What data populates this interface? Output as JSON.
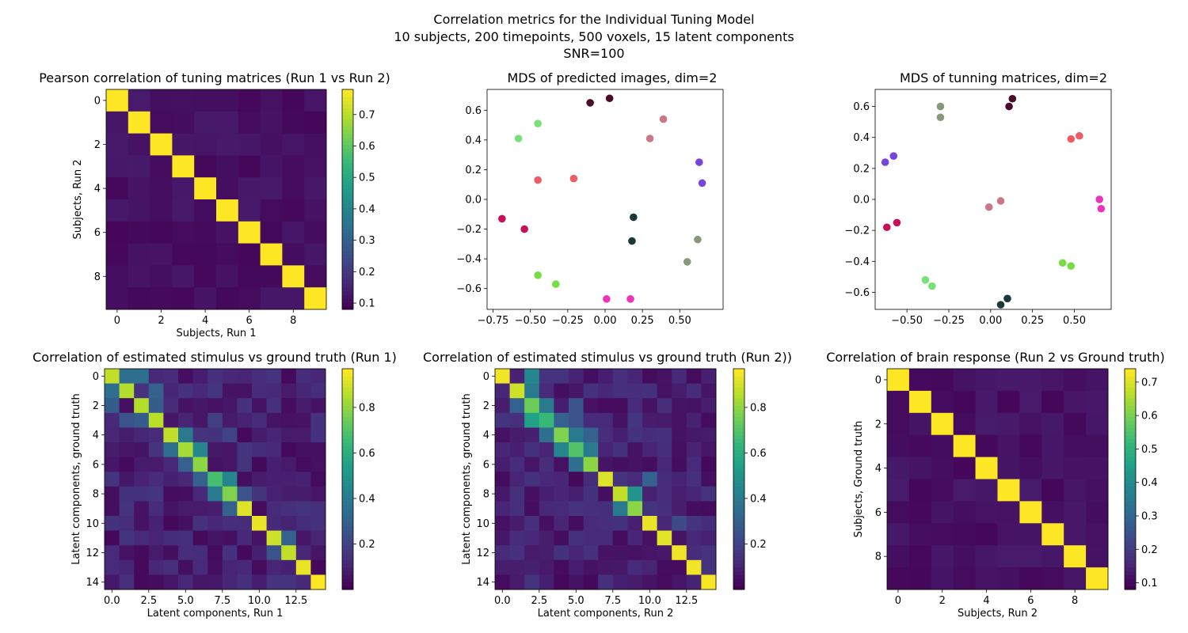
{
  "figure": {
    "suptitle_lines": [
      "Correlation metrics for the Individual Tuning Model",
      "10 subjects, 200 timepoints, 500 voxels, 15 latent components",
      "SNR=100"
    ]
  },
  "chart_data": [
    {
      "id": "tuning",
      "type": "heatmap",
      "title": "Pearson correlation of tuning matrices (Run 1 vs Run 2)",
      "xlabel": "Subjects, Run 1",
      "ylabel": "Subjects, Run 2",
      "n": 10,
      "diag": 0.78,
      "off_range": [
        0.09,
        0.13
      ],
      "vmin": 0.08,
      "vmax": 0.78,
      "xticks": [
        0,
        2,
        4,
        6,
        8
      ],
      "yticks": [
        0,
        2,
        4,
        6,
        8
      ],
      "colorbar_ticks": [
        0.1,
        0.2,
        0.3,
        0.4,
        0.5,
        0.6,
        0.7
      ],
      "colormap": "viridis"
    },
    {
      "id": "mds_pred",
      "type": "scatter",
      "title": "MDS of predicted images, dim=2",
      "xlim": [
        -0.79,
        0.79
      ],
      "ylim": [
        -0.74,
        0.74
      ],
      "xticks": [
        -0.75,
        -0.5,
        -0.25,
        0.0,
        0.25,
        0.5
      ],
      "xtick_labels": [
        "−0.75",
        "−0.50",
        "−0.25",
        "0.00",
        "0.25",
        "0.50"
      ],
      "yticks": [
        -0.6,
        -0.4,
        -0.2,
        0.0,
        0.2,
        0.4,
        0.6
      ],
      "ytick_labels": [
        "−0.6",
        "−0.4",
        "−0.2",
        "0.0",
        "0.2",
        "0.4",
        "0.6"
      ],
      "points": [
        {
          "x": -0.1,
          "y": 0.65,
          "color": "#4a0a2a"
        },
        {
          "x": 0.03,
          "y": 0.68,
          "color": "#4a0a2a"
        },
        {
          "x": -0.45,
          "y": 0.51,
          "color": "#77e077"
        },
        {
          "x": -0.58,
          "y": 0.41,
          "color": "#77e077"
        },
        {
          "x": 0.39,
          "y": 0.54,
          "color": "#cc7788"
        },
        {
          "x": 0.3,
          "y": 0.41,
          "color": "#cc7788"
        },
        {
          "x": 0.63,
          "y": 0.25,
          "color": "#7744dd"
        },
        {
          "x": 0.65,
          "y": 0.11,
          "color": "#7744dd"
        },
        {
          "x": -0.45,
          "y": 0.13,
          "color": "#ee5c66"
        },
        {
          "x": -0.21,
          "y": 0.14,
          "color": "#ee5c66"
        },
        {
          "x": -0.69,
          "y": -0.13,
          "color": "#c8105a"
        },
        {
          "x": -0.54,
          "y": -0.2,
          "color": "#c8105a"
        },
        {
          "x": 0.19,
          "y": -0.12,
          "color": "#1a3a3a"
        },
        {
          "x": 0.18,
          "y": -0.28,
          "color": "#1a3a3a"
        },
        {
          "x": 0.62,
          "y": -0.27,
          "color": "#889977"
        },
        {
          "x": 0.55,
          "y": -0.42,
          "color": "#889977"
        },
        {
          "x": -0.45,
          "y": -0.51,
          "color": "#77dd44"
        },
        {
          "x": -0.33,
          "y": -0.57,
          "color": "#77dd44"
        },
        {
          "x": 0.01,
          "y": -0.67,
          "color": "#ee33bb"
        },
        {
          "x": 0.17,
          "y": -0.67,
          "color": "#ee33bb"
        }
      ]
    },
    {
      "id": "mds_tun",
      "type": "scatter",
      "title": "MDS of tunning matrices, dim=2",
      "xlim": [
        -0.69,
        0.72
      ],
      "ylim": [
        -0.71,
        0.71
      ],
      "xticks": [
        -0.5,
        -0.25,
        0.0,
        0.25,
        0.5
      ],
      "xtick_labels": [
        "−0.50",
        "−0.25",
        "0.00",
        "0.25",
        "0.50"
      ],
      "yticks": [
        -0.6,
        -0.4,
        -0.2,
        0.0,
        0.2,
        0.4,
        0.6
      ],
      "ytick_labels": [
        "−0.6",
        "−0.4",
        "−0.2",
        "0.0",
        "0.2",
        "0.4",
        "0.6"
      ],
      "points": [
        {
          "x": 0.13,
          "y": 0.65,
          "color": "#4a0a2a"
        },
        {
          "x": 0.11,
          "y": 0.6,
          "color": "#4a0a2a"
        },
        {
          "x": -0.3,
          "y": 0.6,
          "color": "#889977"
        },
        {
          "x": -0.3,
          "y": 0.53,
          "color": "#889977"
        },
        {
          "x": 0.48,
          "y": 0.39,
          "color": "#ee5c66"
        },
        {
          "x": 0.53,
          "y": 0.41,
          "color": "#ee5c66"
        },
        {
          "x": -0.63,
          "y": 0.24,
          "color": "#7744dd"
        },
        {
          "x": -0.58,
          "y": 0.28,
          "color": "#7744dd"
        },
        {
          "x": 0.06,
          "y": -0.01,
          "color": "#cc7788"
        },
        {
          "x": -0.01,
          "y": -0.05,
          "color": "#cc7788"
        },
        {
          "x": 0.65,
          "y": 0.0,
          "color": "#ee33bb"
        },
        {
          "x": 0.66,
          "y": -0.06,
          "color": "#ee33bb"
        },
        {
          "x": -0.62,
          "y": -0.18,
          "color": "#c8105a"
        },
        {
          "x": -0.56,
          "y": -0.15,
          "color": "#c8105a"
        },
        {
          "x": 0.43,
          "y": -0.41,
          "color": "#77dd44"
        },
        {
          "x": 0.48,
          "y": -0.43,
          "color": "#77dd44"
        },
        {
          "x": -0.39,
          "y": -0.52,
          "color": "#77e077"
        },
        {
          "x": -0.35,
          "y": -0.56,
          "color": "#77e077"
        },
        {
          "x": 0.06,
          "y": -0.68,
          "color": "#1a3a3a"
        },
        {
          "x": 0.1,
          "y": -0.64,
          "color": "#1a3a3a"
        }
      ]
    },
    {
      "id": "stim_run1",
      "type": "heatmap",
      "title": "Correlation of estimated stimulus vs ground truth (Run 1)",
      "xlabel": "Latent components, Run 1",
      "ylabel": "Latent components, ground truth",
      "n": 15,
      "vmin": 0.0,
      "vmax": 0.97,
      "xticks": [
        0,
        2.5,
        5,
        7.5,
        10,
        12.5
      ],
      "xtick_labels": [
        "0.0",
        "2.5",
        "5.0",
        "7.5",
        "10.0",
        "12.5"
      ],
      "yticks": [
        0,
        2,
        4,
        6,
        8,
        10,
        12,
        14
      ],
      "colorbar_ticks": [
        0.2,
        0.4,
        0.6,
        0.8
      ],
      "diagonal": [
        0.88,
        0.86,
        0.86,
        0.87,
        0.88,
        0.84,
        0.8,
        0.68,
        0.78,
        0.92,
        0.94,
        0.9,
        0.88,
        0.94,
        0.97
      ],
      "highlights": [
        {
          "r": 0,
          "c": 1,
          "v": 0.35
        },
        {
          "r": 0,
          "c": 2,
          "v": 0.35
        },
        {
          "r": 1,
          "c": 0,
          "v": 0.35
        },
        {
          "r": 1,
          "c": 3,
          "v": 0.3
        },
        {
          "r": 2,
          "c": 0,
          "v": 0.28
        },
        {
          "r": 2,
          "c": 3,
          "v": 0.28
        },
        {
          "r": 3,
          "c": 1,
          "v": 0.25
        },
        {
          "r": 3,
          "c": 2,
          "v": 0.28
        },
        {
          "r": 4,
          "c": 5,
          "v": 0.4
        },
        {
          "r": 5,
          "c": 4,
          "v": 0.35
        },
        {
          "r": 5,
          "c": 6,
          "v": 0.45
        },
        {
          "r": 6,
          "c": 5,
          "v": 0.3
        },
        {
          "r": 7,
          "c": 8,
          "v": 0.45
        },
        {
          "r": 7,
          "c": 6,
          "v": 0.3
        },
        {
          "r": 8,
          "c": 7,
          "v": 0.4
        },
        {
          "r": 8,
          "c": 9,
          "v": 0.25
        },
        {
          "r": 9,
          "c": 8,
          "v": 0.3
        },
        {
          "r": 11,
          "c": 12,
          "v": 0.3
        },
        {
          "r": 12,
          "c": 11,
          "v": 0.25
        },
        {
          "r": 4,
          "c": 8,
          "v": 0.2
        },
        {
          "r": 3,
          "c": 7,
          "v": 0.18
        }
      ]
    },
    {
      "id": "stim_run2",
      "type": "heatmap",
      "title": "Correlation of estimated stimulus vs ground truth (Run 2))",
      "xlabel": "Latent components, Run 2",
      "ylabel": "Latent components, ground truth",
      "n": 15,
      "vmin": 0.0,
      "vmax": 0.97,
      "xticks": [
        0,
        2.5,
        5,
        7.5,
        10,
        12.5
      ],
      "xtick_labels": [
        "0.0",
        "2.5",
        "5.0",
        "7.5",
        "10.0",
        "12.5"
      ],
      "yticks": [
        0,
        2,
        4,
        6,
        8,
        10,
        12,
        14
      ],
      "colorbar_ticks": [
        0.2,
        0.4,
        0.6,
        0.8
      ],
      "diagonal": [
        0.95,
        0.9,
        0.75,
        0.65,
        0.78,
        0.7,
        0.8,
        0.92,
        0.88,
        0.8,
        0.94,
        0.93,
        0.95,
        0.95,
        0.96
      ],
      "highlights": [
        {
          "r": 0,
          "c": 2,
          "v": 0.45
        },
        {
          "r": 1,
          "c": 2,
          "v": 0.4
        },
        {
          "r": 2,
          "c": 1,
          "v": 0.3
        },
        {
          "r": 2,
          "c": 3,
          "v": 0.4
        },
        {
          "r": 3,
          "c": 2,
          "v": 0.55
        },
        {
          "r": 3,
          "c": 4,
          "v": 0.3
        },
        {
          "r": 4,
          "c": 3,
          "v": 0.35
        },
        {
          "r": 4,
          "c": 5,
          "v": 0.4
        },
        {
          "r": 4,
          "c": 6,
          "v": 0.3
        },
        {
          "r": 5,
          "c": 4,
          "v": 0.45
        },
        {
          "r": 5,
          "c": 6,
          "v": 0.4
        },
        {
          "r": 6,
          "c": 5,
          "v": 0.35
        },
        {
          "r": 8,
          "c": 9,
          "v": 0.5
        },
        {
          "r": 9,
          "c": 8,
          "v": 0.4
        },
        {
          "r": 7,
          "c": 10,
          "v": 0.3
        },
        {
          "r": 10,
          "c": 12,
          "v": 0.22
        },
        {
          "r": 2,
          "c": 5,
          "v": 0.25
        },
        {
          "r": 3,
          "c": 5,
          "v": 0.25
        }
      ]
    },
    {
      "id": "brain",
      "type": "heatmap",
      "title": "Correlation of brain response (Run 2 vs Ground truth)",
      "xlabel": "Subjects, Run 2",
      "ylabel": "Subjects, Ground truth",
      "n": 10,
      "diag": 0.74,
      "off_range": [
        0.09,
        0.13
      ],
      "vmin": 0.08,
      "vmax": 0.74,
      "xticks": [
        0,
        2,
        4,
        6,
        8
      ],
      "yticks": [
        0,
        2,
        4,
        6,
        8
      ],
      "colorbar_ticks": [
        0.1,
        0.2,
        0.3,
        0.4,
        0.5,
        0.6,
        0.7
      ],
      "colormap": "viridis"
    }
  ]
}
